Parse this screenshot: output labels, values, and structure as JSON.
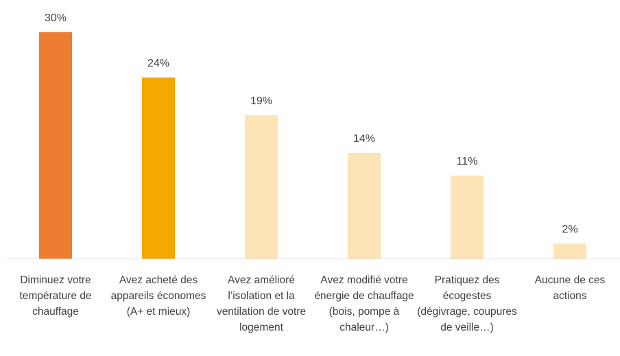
{
  "chart_data": {
    "type": "bar",
    "categories": [
      "Diminuez votre température de chauffage",
      "Avez acheté des appareils économes (A+ et mieux)",
      "Avez amélioré l’isolation et la ventilation de votre logement",
      "Avez modifié votre énergie de chauffage (bois, pompe à chaleur…)",
      "Pratiquez des écogestes (dégivrage, coupures de veille…)",
      "Aucune de ces actions"
    ],
    "values": [
      30,
      24,
      19,
      14,
      11,
      2
    ],
    "value_labels": [
      "30%",
      "24%",
      "19%",
      "14%",
      "11%",
      "2%"
    ],
    "colors": [
      "#ed7d31",
      "#f5a800",
      "#fce4b6",
      "#fce4b6",
      "#fce4b6",
      "#fce4b6"
    ]
  }
}
